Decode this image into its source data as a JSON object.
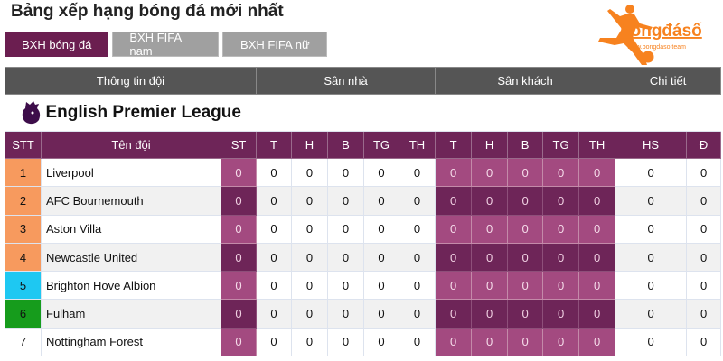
{
  "title": "Bảng xếp hạng bóng đá mới nhất",
  "tabs": [
    {
      "label": "BXH bóng đá",
      "active": true
    },
    {
      "label": "BXH FIFA nam",
      "active": false
    },
    {
      "label": "BXH FIFA nữ",
      "active": false
    }
  ],
  "logo": {
    "brand": "bóngđásố",
    "url": "www.bongdaso.team"
  },
  "groups": [
    "Thông tin đội",
    "Sân nhà",
    "Sân khách",
    "Chi tiết"
  ],
  "league": "English Premier League",
  "columns": [
    "STT",
    "Tên đội",
    "ST",
    "T",
    "H",
    "B",
    "TG",
    "TH",
    "T",
    "H",
    "B",
    "TG",
    "TH",
    "HS",
    "Đ"
  ],
  "rank_colors": {
    "1": "#f79a5e",
    "2": "#f79a5e",
    "3": "#f79a5e",
    "4": "#f79a5e",
    "5": "#1ec8f2",
    "6": "#169c1c"
  },
  "rows": [
    {
      "rank": "1",
      "team": "Liverpool",
      "stats": [
        "0",
        "0",
        "0",
        "0",
        "0",
        "0",
        "0",
        "0",
        "0",
        "0",
        "0",
        "0",
        "0"
      ]
    },
    {
      "rank": "2",
      "team": "AFC Bournemouth",
      "stats": [
        "0",
        "0",
        "0",
        "0",
        "0",
        "0",
        "0",
        "0",
        "0",
        "0",
        "0",
        "0",
        "0"
      ]
    },
    {
      "rank": "3",
      "team": "Aston Villa",
      "stats": [
        "0",
        "0",
        "0",
        "0",
        "0",
        "0",
        "0",
        "0",
        "0",
        "0",
        "0",
        "0",
        "0"
      ]
    },
    {
      "rank": "4",
      "team": "Newcastle United",
      "stats": [
        "0",
        "0",
        "0",
        "0",
        "0",
        "0",
        "0",
        "0",
        "0",
        "0",
        "0",
        "0",
        "0"
      ]
    },
    {
      "rank": "5",
      "team": "Brighton Hove Albion",
      "stats": [
        "0",
        "0",
        "0",
        "0",
        "0",
        "0",
        "0",
        "0",
        "0",
        "0",
        "0",
        "0",
        "0"
      ]
    },
    {
      "rank": "6",
      "team": "Fulham",
      "stats": [
        "0",
        "0",
        "0",
        "0",
        "0",
        "0",
        "0",
        "0",
        "0",
        "0",
        "0",
        "0",
        "0"
      ]
    },
    {
      "rank": "7",
      "team": "Nottingham Forest",
      "stats": [
        "0",
        "0",
        "0",
        "0",
        "0",
        "0",
        "0",
        "0",
        "0",
        "0",
        "0",
        "0",
        "0"
      ]
    }
  ]
}
